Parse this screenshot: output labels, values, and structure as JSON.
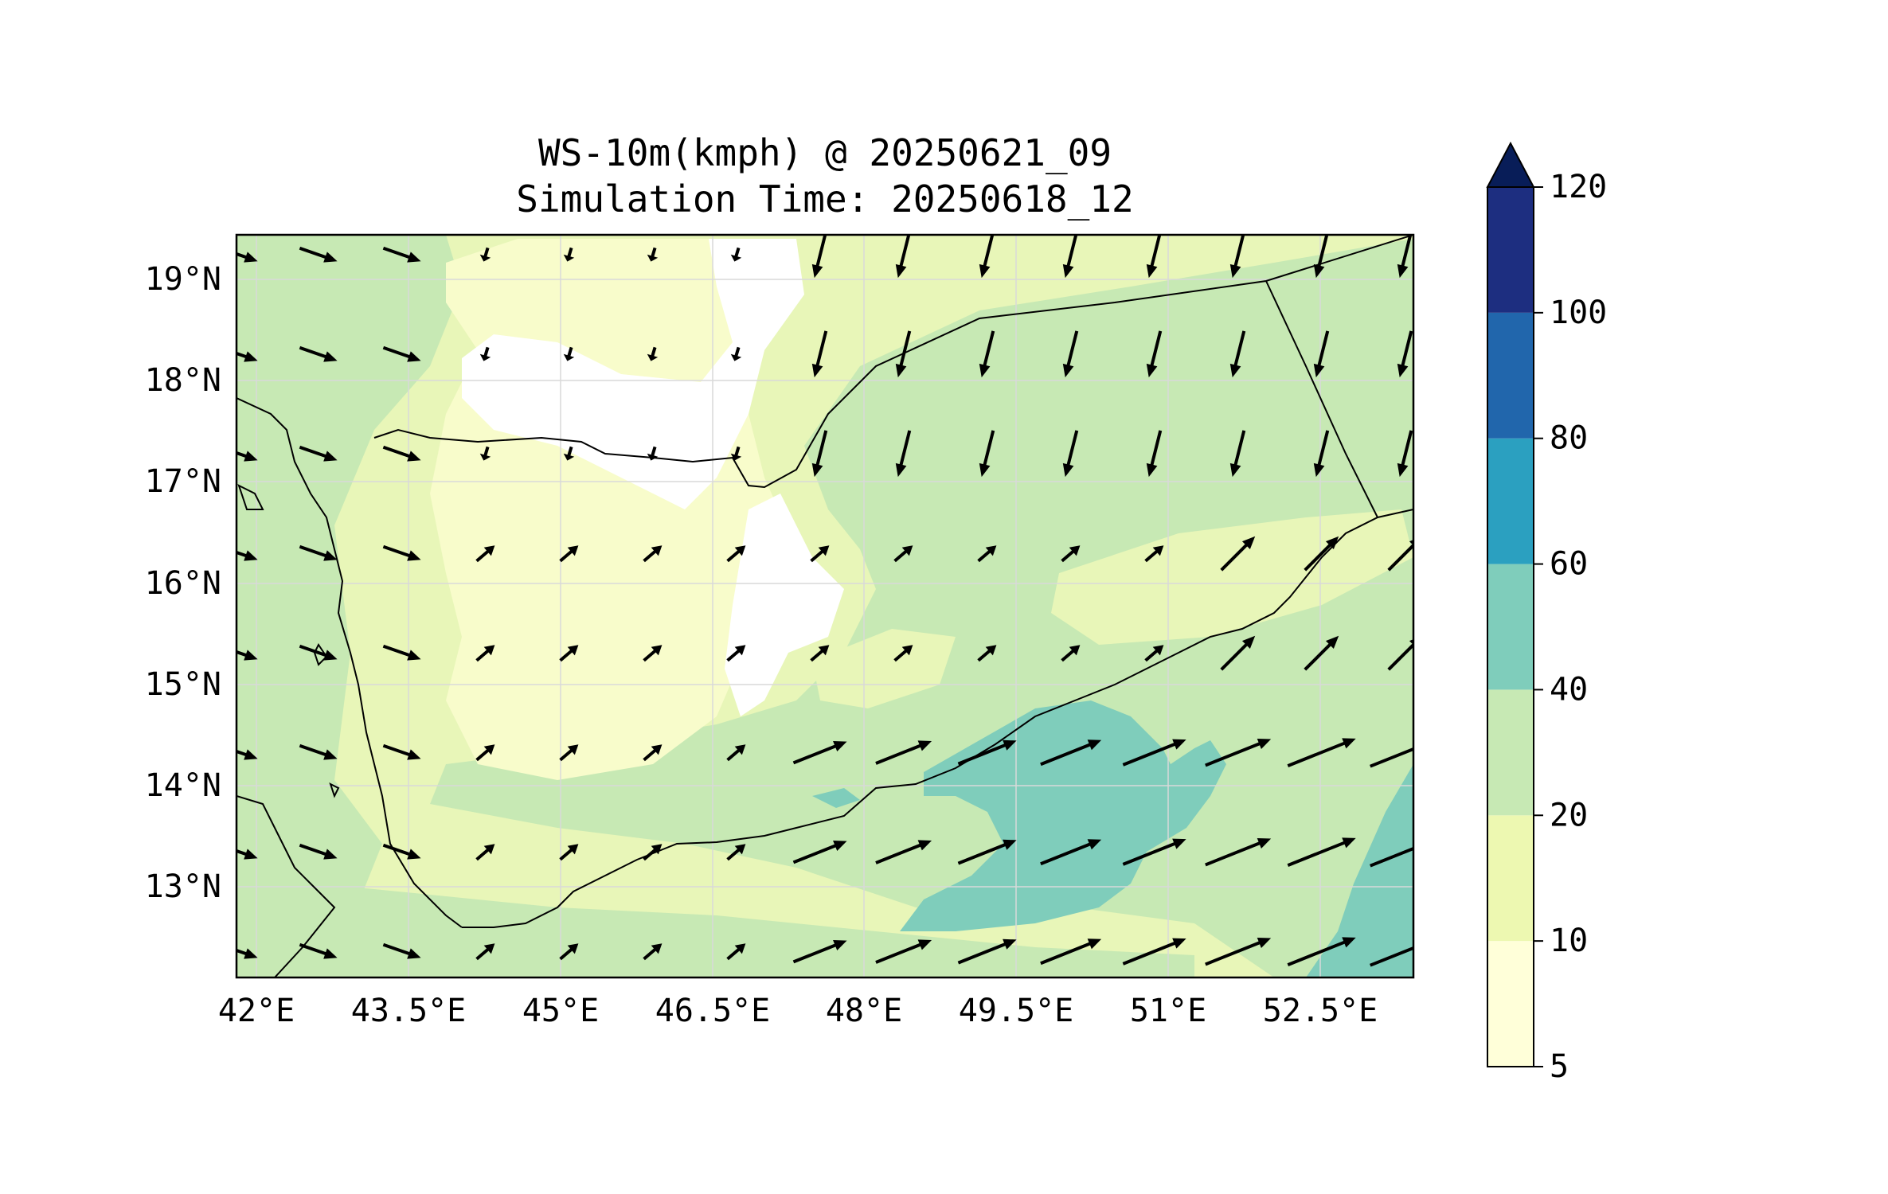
{
  "figure": {
    "title_line1": "WS-10m(kmph) @ 20250621_09",
    "title_line2": "Simulation Time: 20250618_12"
  },
  "map": {
    "variable": "10 m wind speed",
    "units": "kmph",
    "lon_range": [
      41.8,
      53.4
    ],
    "lat_range": [
      12.1,
      19.45
    ],
    "lon_ticks": [
      "42°E",
      "43.5°E",
      "45°E",
      "46.5°E",
      "48°E",
      "49.5°E",
      "51°E",
      "52.5°E"
    ],
    "lat_ticks": [
      "13°N",
      "14°N",
      "15°N",
      "16°N",
      "17°N",
      "18°N",
      "19°N"
    ],
    "gridlines": true,
    "land_color_low": "#ffffdd",
    "vector_color": "#000000"
  },
  "colorbar": {
    "levels": [
      "5",
      "10",
      "20",
      "40",
      "60",
      "80",
      "100",
      "120"
    ],
    "colors": [
      "#ffffd9",
      "#edf8b1",
      "#c7e9b4",
      "#7fcdbb",
      "#2ba0c0",
      "#2166ac",
      "#1d2e80"
    ],
    "extend_color": "#081d58",
    "extend": "max"
  }
}
